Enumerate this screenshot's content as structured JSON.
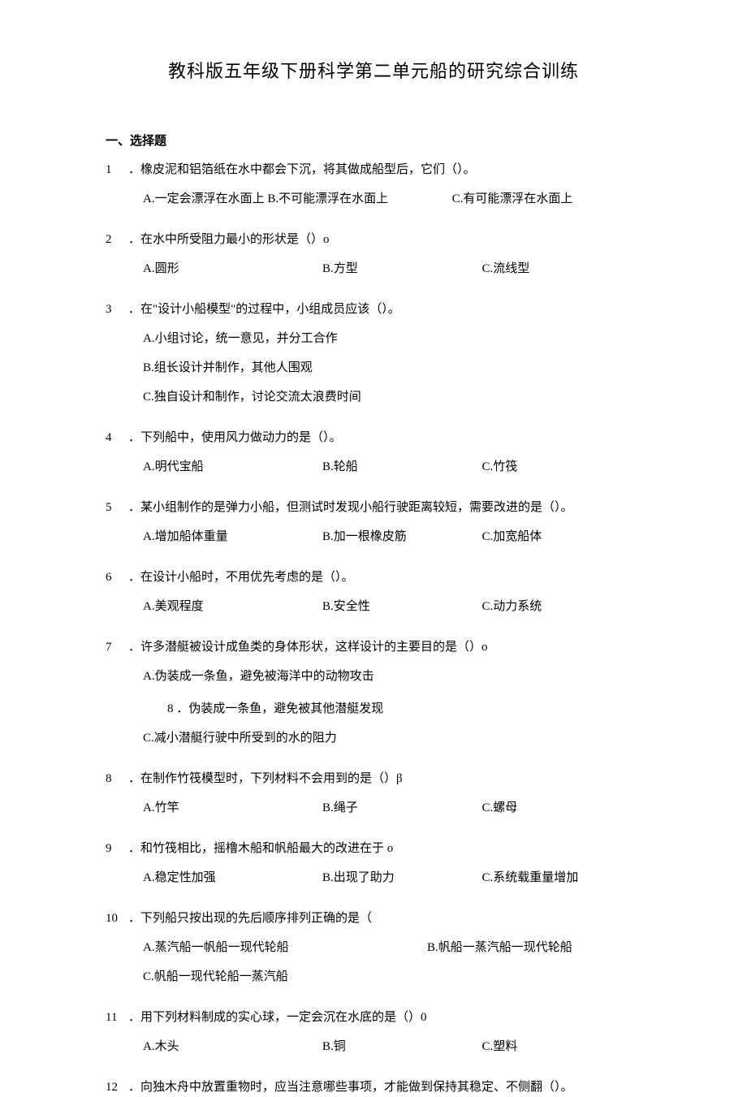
{
  "title": "教科版五年级下册科学第二单元船的研究综合训练",
  "section_header": "一、选择题",
  "questions": [
    {
      "num": "1",
      "stem": "．橡皮泥和铝箔纸在水中都会下沉，将其做成船型后，它们（）。",
      "layout": "wide",
      "opts": {
        "a": "A.一定会漂浮在水面上 B.不可能漂浮在水面上",
        "c": "C.有可能漂浮在水面上"
      }
    },
    {
      "num": "2",
      "stem": "．在水中所受阻力最小的形状是（）o",
      "layout": "three",
      "opts": {
        "a": "A.圆形",
        "b": "B.方型",
        "c": "C.流线型"
      }
    },
    {
      "num": "3",
      "stem": "．在\"设计小船模型\"的过程中，小组成员应该（）。",
      "layout": "stack",
      "opts": {
        "a": "A.小组讨论，统一意见，并分工合作",
        "b": "B.组长设计并制作，其他人围观",
        "c": "C.独自设计和制作，讨论交流太浪费时间"
      }
    },
    {
      "num": "4",
      "stem": "．下列船中，使用风力做动力的是（）。",
      "layout": "three",
      "opts": {
        "a": "A.明代宝船",
        "b": "B.轮船",
        "c": "C.竹筏"
      }
    },
    {
      "num": "5",
      "stem": "．某小组制作的是弹力小船，但测试时发现小船行驶距离较短，需要改进的是（）。",
      "layout": "three",
      "opts": {
        "a": "A.增加船体重量",
        "b": "B.加一根橡皮筋",
        "c": "C.加宽船体"
      }
    },
    {
      "num": "6",
      "stem": "．在设计小船时，不用优先考虑的是（）。",
      "layout": "three",
      "opts": {
        "a": "A.美观程度",
        "b": "B.安全性",
        "c": "C.动力系统"
      }
    },
    {
      "num": "7",
      "stem": "．许多潜艇被设计成鱼类的身体形状，这样设计的主要目的是（）o",
      "layout": "special7",
      "opts": {
        "a": "A.伪装成一条鱼，避免被海洋中的动物攻击",
        "b": "8 ．伪装成一条鱼，避免被其他潜艇发现",
        "c": "C.减小潜艇行驶中所受到的水的阻力"
      }
    },
    {
      "num": "8",
      "stem": "．在制作竹筏模型时，下列材料不会用到的是（）β",
      "layout": "three",
      "opts": {
        "a": "A.竹竿",
        "b": "B.绳子",
        "c": "C.螺母"
      }
    },
    {
      "num": "9",
      "stem": "．和竹筏相比，摇橹木船和帆船最大的改进在于 o",
      "layout": "three",
      "opts": {
        "a": "A.稳定性加强",
        "b": "B.出现了助力",
        "c": "C.系统载重量增加"
      }
    },
    {
      "num": "10",
      "stem": "．下列船只按出现的先后顺序排列正确的是（",
      "layout": "q10",
      "opts": {
        "a": "A.蒸汽船一帆船一现代轮船",
        "b": "B.帆船一蒸汽船一现代轮船",
        "c": "C.帆船一现代轮船一蒸汽船"
      }
    },
    {
      "num": "11",
      "stem": "．用下列材料制成的实心球，一定会沉在水底的是（）0",
      "layout": "three",
      "opts": {
        "a": "A.木头",
        "b": "B.铜",
        "c": "C.塑料"
      }
    },
    {
      "num": "12",
      "stem": "．向独木舟中放置重物时，应当注意哪些事项，才能做到保持其稳定、不侧翻（）。",
      "layout": "none",
      "opts": {}
    }
  ]
}
